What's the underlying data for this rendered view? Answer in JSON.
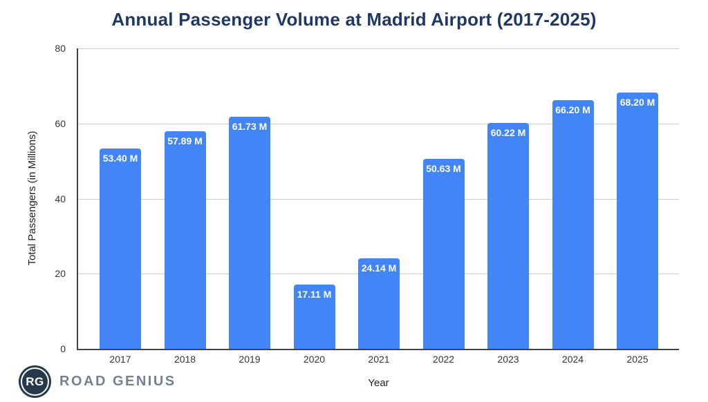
{
  "title": "Annual Passenger Volume at Madrid Airport (2017-2025)",
  "chart_data": {
    "type": "bar",
    "categories": [
      "2017",
      "2018",
      "2019",
      "2020",
      "2021",
      "2022",
      "2023",
      "2024",
      "2025"
    ],
    "values": [
      53.4,
      57.89,
      61.73,
      17.11,
      24.14,
      50.63,
      60.22,
      66.2,
      68.2
    ],
    "bar_labels": [
      "53.40 M",
      "57.89 M",
      "61.73 M",
      "17.11 M",
      "24.14 M",
      "50.63 M",
      "60.22 M",
      "66.20 M",
      "68.20 M"
    ],
    "title": "Annual Passenger Volume at Madrid Airport (2017-2025)",
    "xlabel": "Year",
    "ylabel": "Total Passengers (in Millions)",
    "ylim": [
      0,
      80
    ],
    "yticks": [
      0,
      20,
      40,
      60,
      80
    ],
    "grid": true,
    "legend": "none",
    "bar_color": "#4285F4",
    "bar_label_color": "#FFFFFF"
  },
  "colors": {
    "title_text": "#1F3864",
    "bar": "#4285F4",
    "gridline": "#CCCCCC",
    "axis_line": "#424242",
    "tick_text": "#333333",
    "logo_circle": "#243949",
    "logo_text": "#74828F"
  },
  "logo": {
    "monogram": "RG",
    "text": "ROAD GENIUS"
  }
}
